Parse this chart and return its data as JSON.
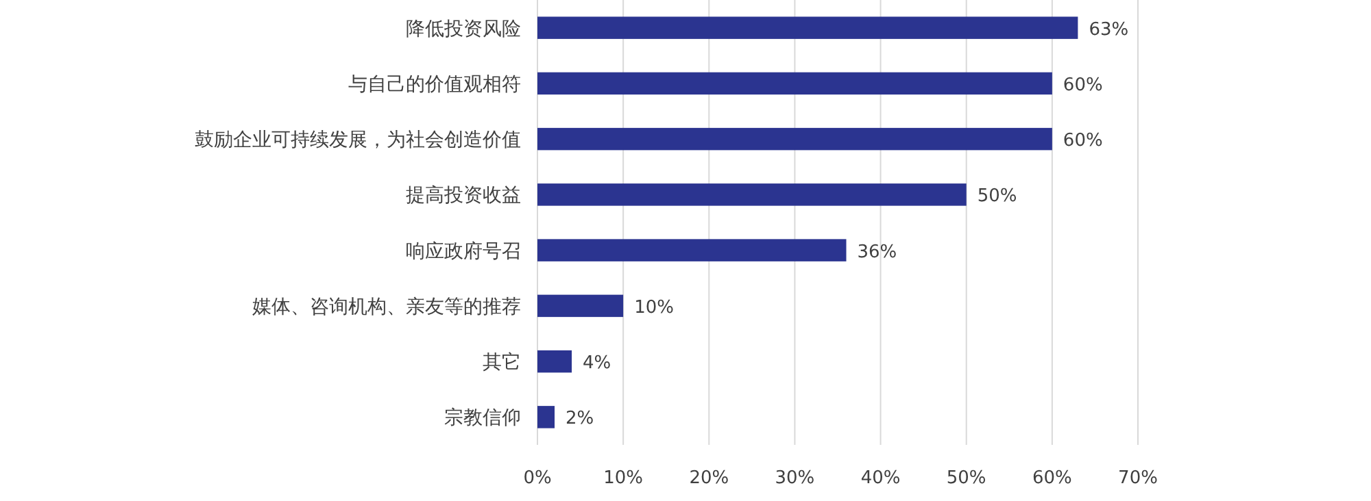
{
  "chart_data": {
    "type": "bar",
    "orientation": "horizontal",
    "categories": [
      "降低投资风险",
      "与自己的价值观相符",
      "鼓励企业可持续发展，为社会创造价值",
      "提高投资收益",
      "响应政府号召",
      "媒体、咨询机构、亲友等的推荐",
      "其它",
      "宗教信仰"
    ],
    "values": [
      63,
      60,
      60,
      50,
      36,
      10,
      4,
      2
    ],
    "value_labels": [
      "63%",
      "60%",
      "60%",
      "50%",
      "36%",
      "10%",
      "4%",
      "2%"
    ],
    "color": "#2b3490",
    "xlim": [
      0,
      70
    ],
    "xticks": [
      {
        "value": 0,
        "label": "0%"
      },
      {
        "value": 10,
        "label": "10%"
      },
      {
        "value": 20,
        "label": "20%"
      },
      {
        "value": 30,
        "label": "30%"
      },
      {
        "value": 40,
        "label": "40%"
      },
      {
        "value": 50,
        "label": "50%"
      },
      {
        "value": 60,
        "label": "60%"
      },
      {
        "value": 70,
        "label": "70%"
      }
    ],
    "grid": "x"
  }
}
